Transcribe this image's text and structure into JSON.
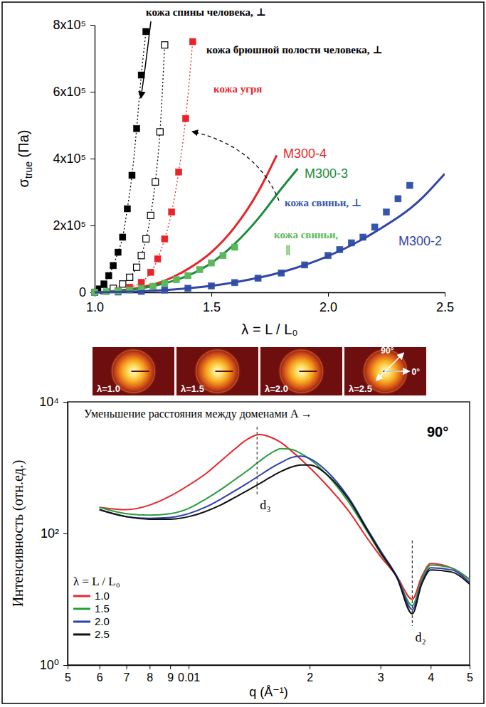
{
  "chart_data": [
    {
      "type": "line",
      "xlabel": "λ = L / L₀",
      "ylabel": "σtrue (Па)",
      "xlim": [
        1,
        2.5
      ],
      "xticks": [
        {
          "value": 1,
          "label": "1.0"
        },
        1.5,
        {
          "value": 2,
          "label": "2.0"
        },
        2.5
      ],
      "ylim": [
        0,
        800000
      ],
      "yticks": [
        0,
        {
          "value": 200000,
          "label": "2x10⁵"
        },
        {
          "value": 400000,
          "label": "4x10⁵"
        },
        {
          "value": 600000,
          "label": "6x10⁵"
        },
        {
          "value": 800000,
          "label": "8x10⁵"
        }
      ],
      "series": [
        {
          "name": "кожа спины человека, ⊥",
          "color": "#000000",
          "type": "line",
          "marker": "square",
          "line_style": "dotted",
          "x": [
            1.0,
            1.02,
            1.04,
            1.06,
            1.08,
            1.1,
            1.12,
            1.14,
            1.16,
            1.18,
            1.2,
            1.22
          ],
          "values": [
            0,
            10000,
            25000,
            50000,
            80000,
            120000,
            165000,
            250000,
            350000,
            490000,
            650000,
            780000
          ]
        },
        {
          "name": "кожа брюшной полости человека, ⊥",
          "color": "#000000",
          "type": "line",
          "marker": "square-open",
          "line_style": "dotted",
          "x": [
            1.0,
            1.04,
            1.08,
            1.12,
            1.15,
            1.18,
            1.2,
            1.22,
            1.24,
            1.26,
            1.28,
            1.3
          ],
          "values": [
            0,
            5000,
            12000,
            25000,
            45000,
            75000,
            110000,
            160000,
            230000,
            330000,
            480000,
            740000
          ]
        },
        {
          "name": "кожа угря",
          "color": "#e8242a",
          "type": "line",
          "marker": "square",
          "line_style": "dotted",
          "x": [
            1.0,
            1.1,
            1.15,
            1.2,
            1.24,
            1.27,
            1.3,
            1.33,
            1.36,
            1.39,
            1.42
          ],
          "values": [
            0,
            5000,
            15000,
            30000,
            60000,
            100000,
            160000,
            240000,
            360000,
            520000,
            750000
          ]
        },
        {
          "name": "M300-4",
          "color": "#e8242a",
          "type": "line",
          "marker": "none",
          "line_style": "solid",
          "x": [
            1.0,
            1.1,
            1.2,
            1.3,
            1.4,
            1.5,
            1.6,
            1.7,
            1.78
          ],
          "values": [
            0,
            5000,
            15000,
            35000,
            70000,
            120000,
            195000,
            300000,
            410000
          ]
        },
        {
          "name": "M300-3",
          "color": "#1a8c3a",
          "type": "line",
          "marker": "none",
          "line_style": "solid",
          "x": [
            1.0,
            1.1,
            1.2,
            1.3,
            1.4,
            1.5,
            1.6,
            1.7,
            1.8,
            1.87
          ],
          "values": [
            0,
            4000,
            12000,
            27000,
            50000,
            88000,
            145000,
            220000,
            310000,
            370000
          ]
        },
        {
          "name": "кожа свиньи, ⊥",
          "color": "#3355aa",
          "type": "scatter",
          "marker": "square",
          "line_style": "none",
          "x": [
            1.0,
            1.1,
            1.2,
            1.3,
            1.4,
            1.5,
            1.6,
            1.7,
            1.8,
            1.9,
            2.0,
            2.05,
            2.1,
            2.15,
            2.2,
            2.25,
            2.3,
            2.35
          ],
          "values": [
            0,
            1000,
            3000,
            7000,
            12000,
            19000,
            29000,
            42000,
            58000,
            82000,
            110000,
            128000,
            148000,
            165000,
            195000,
            240000,
            280000,
            320000
          ]
        },
        {
          "name": "кожа свиньи, ∥",
          "color": "#5cb85c",
          "type": "scatter",
          "marker": "square",
          "line_style": "none",
          "x": [
            1.0,
            1.05,
            1.1,
            1.15,
            1.2,
            1.25,
            1.3,
            1.35,
            1.4,
            1.45,
            1.5,
            1.55,
            1.6
          ],
          "values": [
            0,
            2000,
            4000,
            7000,
            12000,
            18000,
            27000,
            38000,
            50000,
            68000,
            88000,
            110000,
            135000
          ]
        },
        {
          "name": "M300-2",
          "color": "#3347a6",
          "type": "line",
          "marker": "none",
          "line_style": "solid",
          "x": [
            1.0,
            1.2,
            1.4,
            1.6,
            1.8,
            2.0,
            2.2,
            2.4,
            2.5
          ],
          "values": [
            0,
            3000,
            12000,
            30000,
            60000,
            108000,
            180000,
            280000,
            355000
          ]
        }
      ]
    },
    {
      "type": "line",
      "log": true,
      "xlabel": "q (Å⁻¹)",
      "ylabel": "Интенсивность (отн.ед.)",
      "xlim": [
        0.005,
        0.05
      ],
      "xticks": [
        {
          "value": 0.005,
          "label": "5"
        },
        {
          "value": 0.006,
          "label": "6"
        },
        {
          "value": 0.007,
          "label": "7"
        },
        {
          "value": 0.008,
          "label": "8"
        },
        {
          "value": 0.009,
          "label": "9"
        },
        0.01,
        {
          "value": 0.02,
          "label": "2"
        },
        {
          "value": 0.03,
          "label": "3"
        },
        {
          "value": 0.04,
          "label": "4"
        },
        {
          "value": 0.05,
          "label": "5"
        }
      ],
      "ylim": [
        1,
        10000
      ],
      "yticks": [
        {
          "value": 1,
          "label": "10⁰"
        },
        {
          "value": 100,
          "label": "10²"
        },
        {
          "value": 10000,
          "label": "10⁴"
        }
      ],
      "legend": "lower left",
      "legend_title": "λ = L / L₀",
      "x": [
        0.006,
        0.007,
        0.008,
        0.009,
        0.01,
        0.011,
        0.012,
        0.013,
        0.014,
        0.015,
        0.016,
        0.017,
        0.018,
        0.019,
        0.02,
        0.022,
        0.025,
        0.028,
        0.03,
        0.033,
        0.036,
        0.038,
        0.04,
        0.045,
        0.05
      ],
      "series": [
        {
          "name": "1.0",
          "color": "#e8262b",
          "values": [
            250,
            230,
            270,
            370,
            540,
            800,
            1250,
            1900,
            2700,
            3200,
            2900,
            2400,
            1800,
            1350,
            1000,
            550,
            220,
            80,
            45,
            22,
            10,
            22,
            35,
            30,
            20
          ]
        },
        {
          "name": "1.5",
          "color": "#2a9d3c",
          "values": [
            250,
            200,
            190,
            200,
            240,
            330,
            460,
            650,
            900,
            1250,
            1650,
            1950,
            1900,
            1650,
            1350,
            800,
            300,
            100,
            50,
            22,
            8,
            20,
            33,
            30,
            20
          ]
        },
        {
          "name": "2.0",
          "color": "#2b3fb0",
          "values": [
            230,
            180,
            170,
            175,
            200,
            250,
            330,
            440,
            580,
            760,
            980,
            1200,
            1420,
            1500,
            1380,
            900,
            350,
            110,
            55,
            22,
            7,
            18,
            30,
            28,
            18
          ]
        },
        {
          "name": "2.5",
          "color": "#111111",
          "values": [
            230,
            180,
            165,
            165,
            180,
            215,
            270,
            350,
            450,
            570,
            720,
            880,
            1020,
            1100,
            1100,
            800,
            330,
            105,
            52,
            21,
            6,
            17,
            28,
            26,
            17
          ]
        }
      ],
      "annotations": [
        "Уменьшение расстояния между доменами A →",
        "90°"
      ],
      "reference_lines": [
        {
          "x": 0.0148,
          "label": "d₃"
        },
        {
          "x": 0.036,
          "label": "d₂"
        }
      ]
    }
  ],
  "saxs_patterns": {
    "labels": [
      "λ=1.0",
      "λ=1.5",
      "λ=2.0",
      "λ=2.5"
    ],
    "directions": [
      "90°",
      "0°"
    ]
  }
}
